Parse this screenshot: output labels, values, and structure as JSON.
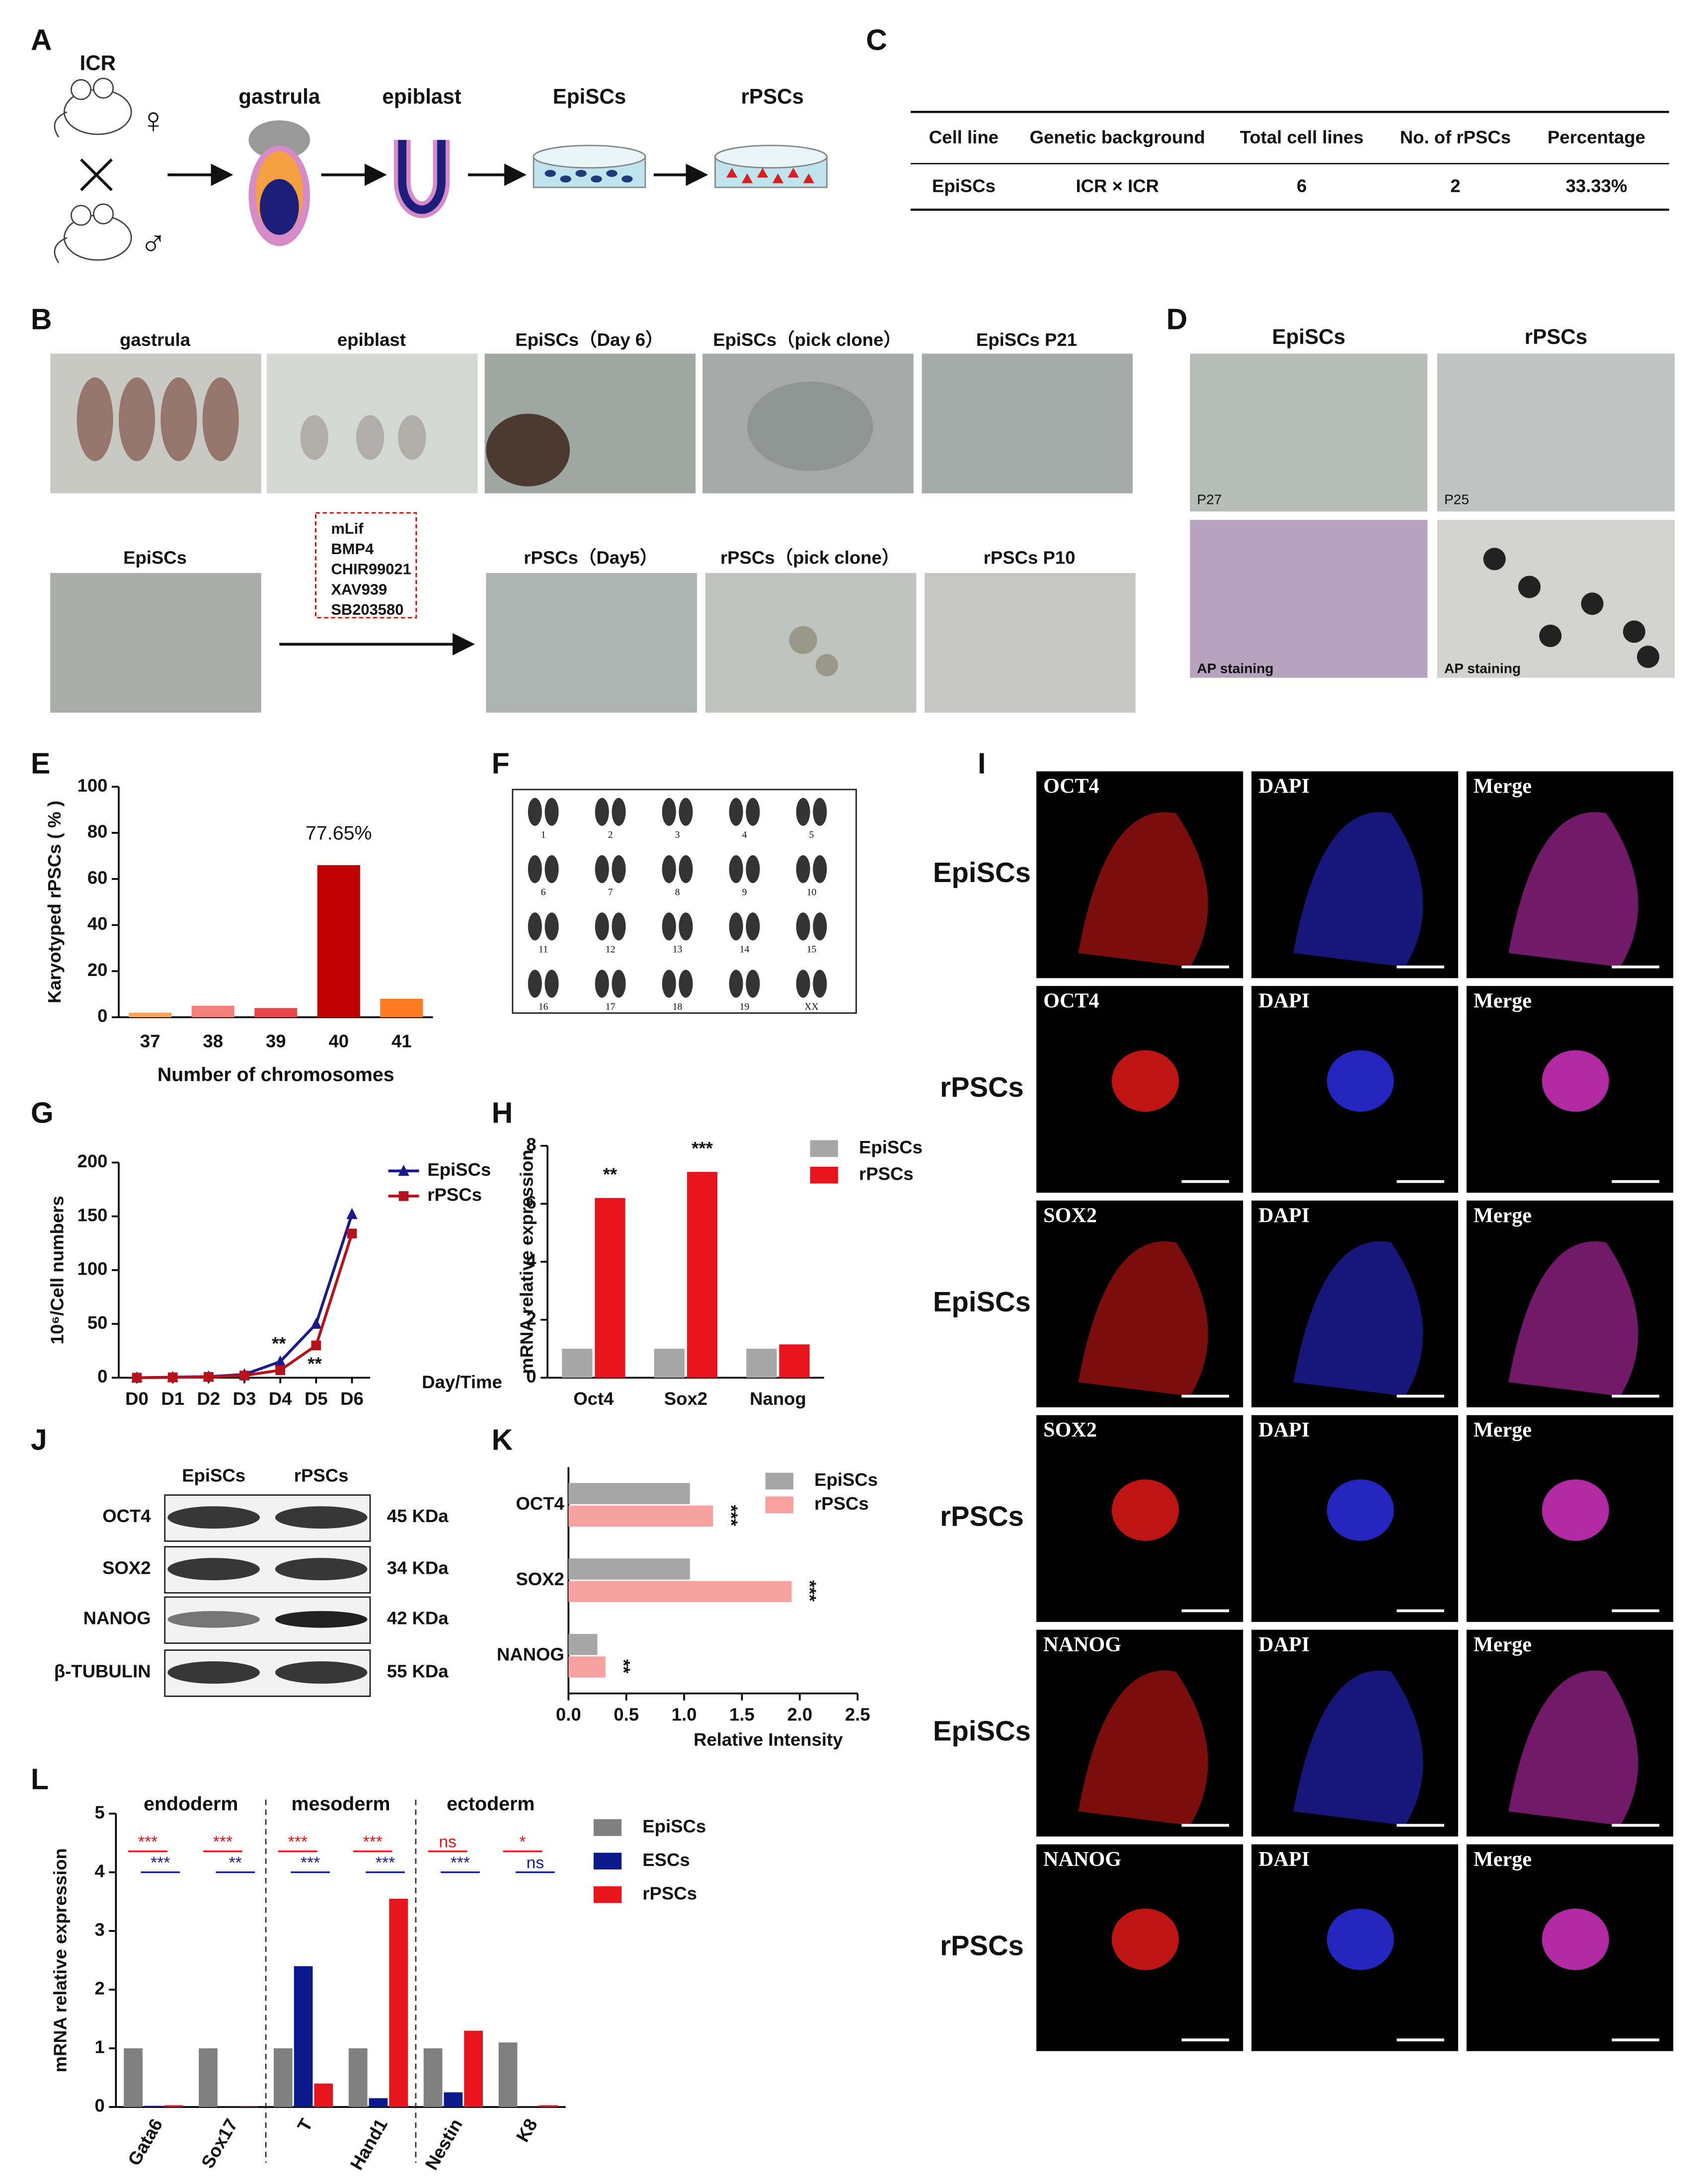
{
  "panel_labels": [
    "A",
    "B",
    "C",
    "D",
    "E",
    "F",
    "G",
    "H",
    "I",
    "J",
    "K",
    "L"
  ],
  "panel_a": {
    "strain": "ICR",
    "female": "♀",
    "male": "♂",
    "stages": [
      "gastrula",
      "epiblast",
      "EpiSCs",
      "rPSCs"
    ]
  },
  "panel_b": {
    "top": [
      "gastrula",
      "epiblast",
      "EpiSCs（Day 6）",
      "EpiSCs（pick clone）",
      "EpiSCs  P21"
    ],
    "bottom": [
      "EpiSCs",
      "rPSCs（Day5）",
      "rPSCs（pick clone）",
      "rPSCs  P10"
    ],
    "factors": [
      "mLif",
      "BMP4",
      "CHIR99021",
      "XAV939",
      "SB203580"
    ]
  },
  "panel_c": {
    "header": [
      "Cell line",
      "Genetic background",
      "Total cell lines",
      "No. of rPSCs",
      "Percentage"
    ],
    "rows": [
      [
        "EpiSCs",
        "ICR × ICR",
        "6",
        "2",
        "33.33%"
      ]
    ]
  },
  "panel_d": {
    "columns": [
      "EpiSCs",
      "rPSCs"
    ],
    "passages": [
      "P27",
      "P25"
    ],
    "stain": [
      "AP staining",
      "AP staining"
    ]
  },
  "panel_f": {
    "chromosomes": [
      "1",
      "2",
      "3",
      "4",
      "5",
      "6",
      "7",
      "8",
      "9",
      "10",
      "11",
      "12",
      "13",
      "14",
      "15",
      "16",
      "17",
      "18",
      "19",
      "XX"
    ]
  },
  "panel_i": {
    "rows": [
      {
        "cell": "EpiSCs",
        "channels": [
          "OCT4",
          "DAPI",
          "Merge"
        ]
      },
      {
        "cell": "rPSCs",
        "channels": [
          "OCT4",
          "DAPI",
          "Merge"
        ]
      },
      {
        "cell": "EpiSCs",
        "channels": [
          "SOX2",
          "DAPI",
          "Merge"
        ]
      },
      {
        "cell": "rPSCs",
        "channels": [
          "SOX2",
          "DAPI",
          "Merge"
        ]
      },
      {
        "cell": "EpiSCs",
        "channels": [
          "NANOG",
          "DAPI",
          "Merge"
        ]
      },
      {
        "cell": "rPSCs",
        "channels": [
          "NANOG",
          "DAPI",
          "Merge"
        ]
      }
    ]
  },
  "panel_j": {
    "columns": [
      "EpiSCs",
      "rPSCs"
    ],
    "proteins": [
      "OCT4",
      "SOX2",
      "NANOG",
      "β-TUBULIN"
    ],
    "sizes": [
      "45 KDa",
      "34 KDa",
      "42 KDa",
      "55 KDa"
    ]
  },
  "chart_data": [
    {
      "type": "bar",
      "ylabel": "Karyotyped rPSCs ( % )",
      "xlabel": "Number of chromosomes",
      "categories": [
        "37",
        "38",
        "39",
        "40",
        "41"
      ],
      "values": [
        2,
        5,
        4,
        66,
        8
      ],
      "colors": [
        "#f6a55c",
        "#f4807c",
        "#e8474a",
        "#c00000",
        "#ff7a22"
      ],
      "ylim": [
        0,
        100
      ],
      "yticks": [
        0,
        20,
        40,
        60,
        80,
        100
      ],
      "annotation": "77.65%"
    },
    {
      "type": "line",
      "ylabel": "10⁶/Cell numbers",
      "xlabel": "Day/Time",
      "categories": [
        "D0",
        "D1",
        "D2",
        "D3",
        "D4",
        "D5",
        "D6"
      ],
      "series": [
        {
          "name": "EpiSCs",
          "color": "#1a1a8c",
          "marker": "triangle",
          "values": [
            0,
            0.5,
            1,
            3,
            15,
            50,
            152
          ]
        },
        {
          "name": "rPSCs",
          "color": "#b5121b",
          "marker": "square",
          "values": [
            0,
            0.3,
            0.8,
            2,
            7,
            30,
            134
          ]
        }
      ],
      "ylim": [
        0,
        200
      ],
      "yticks": [
        0,
        50,
        100,
        150,
        200
      ],
      "annotations": [
        "**",
        "**"
      ]
    },
    {
      "type": "grouped-bar",
      "ylabel": "mRNA  relative expression",
      "categories": [
        "Oct4",
        "Sox2",
        "Nanog"
      ],
      "series": [
        {
          "name": "EpiSCs",
          "color": "#a6a6a6",
          "values": [
            1,
            1,
            1
          ]
        },
        {
          "name": "rPSCs",
          "color": "#e8141b",
          "values": [
            6.2,
            7.1,
            1.15
          ]
        }
      ],
      "ylim": [
        0,
        8
      ],
      "yticks": [
        0,
        2,
        4,
        6,
        8
      ],
      "significance": [
        "**",
        "***",
        null
      ]
    },
    {
      "type": "hbar",
      "xlabel": "Relative  Intensity",
      "categories": [
        "OCT4",
        "SOX2",
        "NANOG"
      ],
      "series": [
        {
          "name": "EpiSCs",
          "color": "#a6a6a6",
          "values": [
            1.05,
            1.05,
            0.25
          ]
        },
        {
          "name": "rPSCs",
          "color": "#f7a1a1",
          "values": [
            1.25,
            1.93,
            0.32
          ]
        }
      ],
      "xlim": [
        0,
        2.5
      ],
      "xticks": [
        {
          "value": 0,
          "label": "0.0"
        },
        0.5,
        {
          "value": 1,
          "label": "1.0"
        },
        1.5,
        {
          "value": 2,
          "label": "2.0"
        },
        2.5
      ],
      "significance": [
        "***",
        "***",
        "**"
      ]
    },
    {
      "type": "grouped-bar",
      "ylabel": "mRNA  relative expression",
      "groups": [
        "endoderm",
        "mesoderm",
        "ectoderm"
      ],
      "categories": [
        "Gata6",
        "Sox17",
        "T",
        "Hand1",
        "Nestin",
        "K8"
      ],
      "series": [
        {
          "name": "EpiSCs",
          "color": "#808080",
          "values": [
            1,
            1,
            1,
            1,
            1,
            1.1
          ]
        },
        {
          "name": "ESCs",
          "color": "#0a1a8c",
          "values": [
            0.02,
            0.01,
            2.4,
            0.15,
            0.25,
            0.01
          ]
        },
        {
          "name": "rPSCs",
          "color": "#e8141b",
          "values": [
            0.03,
            0.01,
            0.4,
            3.55,
            1.3,
            0.03
          ]
        }
      ],
      "ylim": [
        0,
        5
      ],
      "yticks": [
        0,
        1,
        2,
        3,
        4,
        5
      ],
      "significance": [
        {
          "color": "#e8141b",
          "labels": [
            "***",
            "***",
            "***",
            "***",
            "ns",
            "*"
          ]
        },
        {
          "color": "#1a1a9c",
          "labels": [
            "***",
            "**",
            "***",
            "***",
            "***",
            "ns"
          ]
        }
      ]
    }
  ]
}
